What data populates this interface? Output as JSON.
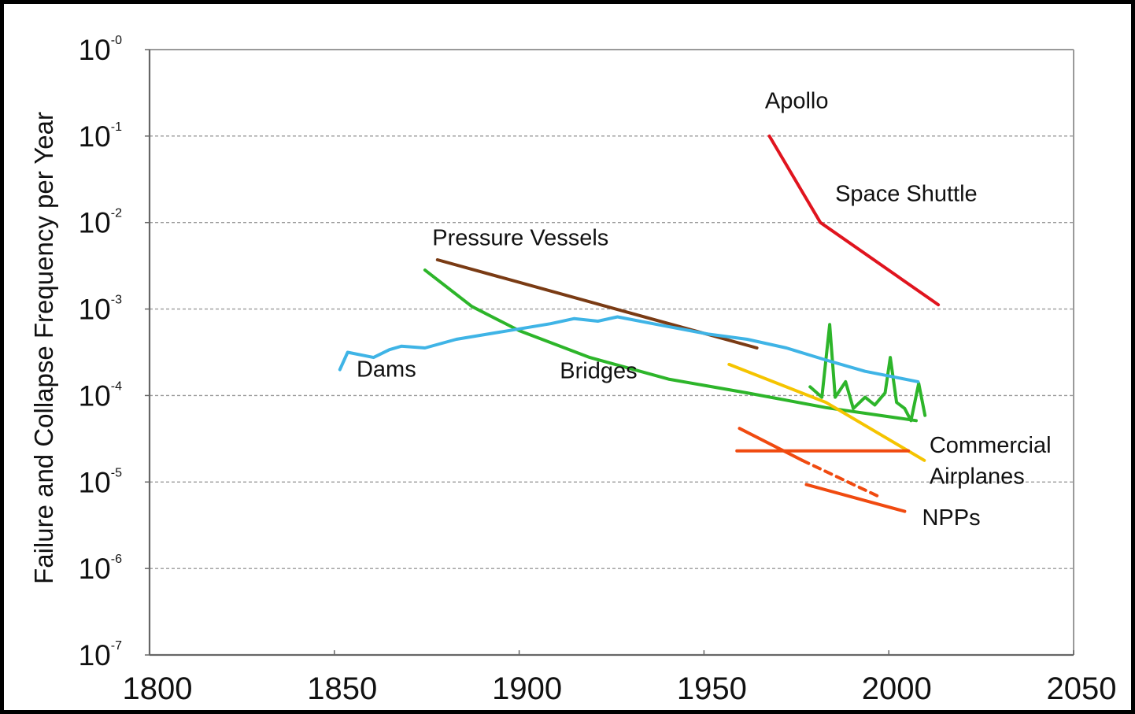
{
  "chart_data": {
    "type": "line",
    "title": "",
    "xlabel": "",
    "ylabel": "Failure and Collapse Frequency per Year",
    "xlim": [
      1800,
      2050
    ],
    "ylim_log10": [
      -7,
      0
    ],
    "y_scale": "log",
    "grid": "horizontal dashed",
    "xticks": [
      1800,
      1850,
      1900,
      1950,
      2000,
      2050
    ],
    "xtick_labels": [
      "1800",
      "1850",
      "1900",
      "1950",
      "2000",
      "2050"
    ],
    "yticks_log10": [
      0,
      -1,
      -2,
      -3,
      -4,
      -5,
      -6,
      -7
    ],
    "ytick_labels": [
      {
        "base": "10",
        "exp": "-0"
      },
      {
        "base": "10",
        "exp": "-1"
      },
      {
        "base": "10",
        "exp": "-2"
      },
      {
        "base": "10",
        "exp": "-3"
      },
      {
        "base": "10",
        "exp": "-4"
      },
      {
        "base": "10",
        "exp": "-5"
      },
      {
        "base": "10",
        "exp": "-6"
      },
      {
        "base": "10",
        "exp": "-7"
      }
    ],
    "series": [
      {
        "name": "Apollo / Space Shuttle",
        "color": "#e0141e",
        "style": "solid",
        "x": [
          1967.7,
          1981.5,
          2013.4
        ],
        "log10_y": [
          -1.0,
          -2.0,
          -2.95
        ]
      },
      {
        "name": "Pressure Vessels",
        "color": "#7a3b14",
        "style": "solid",
        "x": [
          1877.9,
          1964.3
        ],
        "log10_y": [
          -2.43,
          -3.45
        ]
      },
      {
        "name": "Bridges (trend)",
        "color": "#2db52a",
        "style": "solid",
        "x": [
          1874.5,
          1887.2,
          1900,
          1919.1,
          1940.4,
          1961.7,
          1983,
          2007.4
        ],
        "log10_y": [
          -2.55,
          -2.97,
          -3.25,
          -3.56,
          -3.81,
          -3.97,
          -4.14,
          -4.29
        ]
      },
      {
        "name": "Bridges (annual)",
        "color": "#2db52a",
        "style": "solid",
        "x": [
          1978.7,
          1981.9,
          1984,
          1985.5,
          1988.3,
          1990.4,
          1993.6,
          1996.2,
          1999,
          2000.4,
          2002.1,
          2004.3,
          2006,
          2008.1,
          2009.8
        ],
        "log10_y": [
          -3.9,
          -4.02,
          -3.18,
          -4.02,
          -3.84,
          -4.15,
          -4.02,
          -4.11,
          -3.97,
          -3.56,
          -4.08,
          -4.15,
          -4.29,
          -3.86,
          -4.23
        ]
      },
      {
        "name": "Dams",
        "color": "#3fb4e6",
        "style": "solid",
        "x": [
          1851.5,
          1853.6,
          1860.6,
          1864.9,
          1868.1,
          1874.5,
          1883,
          1891.5,
          1900,
          1908.5,
          1914.9,
          1921.3,
          1926.6,
          1936.2,
          1951.1,
          1961.7,
          1972.3,
          1983,
          1993.6,
          2007.9
        ],
        "log10_y": [
          -3.7,
          -3.5,
          -3.56,
          -3.47,
          -3.43,
          -3.45,
          -3.35,
          -3.29,
          -3.23,
          -3.17,
          -3.11,
          -3.14,
          -3.09,
          -3.17,
          -3.29,
          -3.35,
          -3.45,
          -3.59,
          -3.72,
          -3.84
        ]
      },
      {
        "name": "Commercial Airplanes",
        "color": "#f5c400",
        "style": "solid",
        "x": [
          1956.8,
          1983,
          2009.6
        ],
        "log10_y": [
          -3.64,
          -4.08,
          -4.75
        ]
      },
      {
        "name": "NPPs (flat)",
        "color": "#f04a10",
        "style": "solid",
        "x": [
          1958.9,
          2005.3
        ],
        "log10_y": [
          -4.64,
          -4.64
        ]
      },
      {
        "name": "NPPs (early trend)",
        "color": "#f04a10",
        "style": "solid",
        "x": [
          1959.6,
          1976.6
        ],
        "log10_y": [
          -4.38,
          -4.75
        ]
      },
      {
        "name": "NPPs (projected)",
        "color": "#f04a10",
        "style": "dashed",
        "x": [
          1976.6,
          1997.9
        ],
        "log10_y": [
          -4.75,
          -5.18
        ]
      },
      {
        "name": "NPPs (recent trend)",
        "color": "#f04a10",
        "style": "solid",
        "x": [
          1977.7,
          2004.3
        ],
        "log10_y": [
          -5.03,
          -5.34
        ]
      }
    ],
    "annotations": [
      {
        "text": "Apollo",
        "x": 1966.5,
        "log10_y": -0.68
      },
      {
        "text": "Space Shuttle",
        "x": 1985.5,
        "log10_y": -1.75
      },
      {
        "text": "Pressure Vessels",
        "x": 1876.5,
        "log10_y": -2.26
      },
      {
        "text": "Dams",
        "x": 1856,
        "log10_y": -3.78
      },
      {
        "text": "Bridges",
        "x": 1911,
        "log10_y": -3.8
      },
      {
        "text": "Commercial",
        "x": 2011,
        "log10_y": -4.66
      },
      {
        "text": "Airplanes",
        "x": 2011,
        "log10_y": -5.02
      },
      {
        "text": "NPPs",
        "x": 2009,
        "log10_y": -5.5
      }
    ]
  }
}
